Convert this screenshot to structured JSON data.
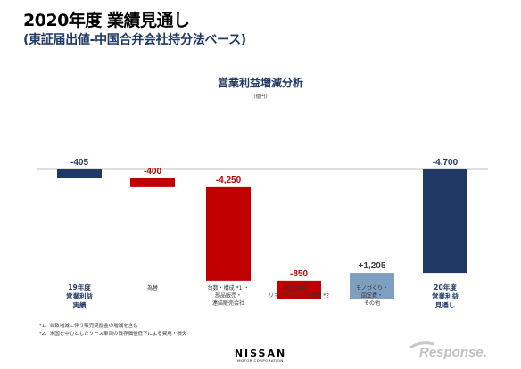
{
  "header": {
    "title": "2020年度 業績見通し",
    "subtitle": "(東証届出値-中国合弁会社持分法ベース)"
  },
  "chart_data": {
    "type": "bar",
    "title": "営業利益増減分析",
    "unit_label": "（億円）",
    "categories": [
      "19年度\n営業利益\n実績",
      "為替",
      "台数・構成 *1 ・\n部品販売・\n連結販売会社",
      "販売金融・\nリマーケティング費用 *2",
      "モノづくり・\n固定費・\nその他",
      "20年度\n営業利益\n見通し"
    ],
    "values": [
      -405,
      -400,
      -4250,
      -850,
      1205,
      -4700
    ],
    "value_labels": [
      "-405",
      "-400",
      "-4,250",
      "-850",
      "+1,205",
      "-4,700"
    ],
    "kinds": [
      "total",
      "delta",
      "delta",
      "delta",
      "delta",
      "total"
    ],
    "bold_categories": [
      true,
      false,
      false,
      false,
      false,
      true
    ],
    "colors": {
      "total": "#1f3864",
      "decrease": "#c00000",
      "increase": "#7f9fc0",
      "total_label": "#1f3864",
      "decrease_label": "#c00000",
      "increase_label": "#404040"
    },
    "xlabel": "",
    "ylabel": "",
    "ylim": [
      -5200,
      0
    ]
  },
  "footnotes": {
    "note1": "*1：台数増減に伴う販売奨励金の増減を含む",
    "note2": "*2：米国を中心としたリース車両の残存価値低下による費用・損失"
  },
  "logo": {
    "brand": "NISSAN",
    "tagline": "MOTOR CORPORATION",
    "watermark": "Response."
  }
}
